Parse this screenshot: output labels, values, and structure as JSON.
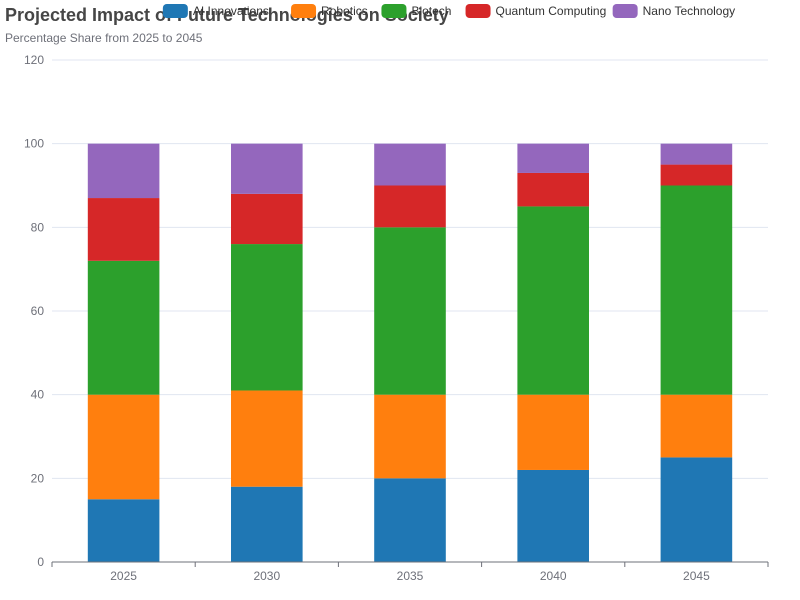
{
  "chart_data": {
    "type": "bar",
    "stacked": true,
    "title": "Projected Impact of Future Technologies on Society",
    "subtitle": "Percentage Share from 2025 to 2045",
    "categories": [
      "2025",
      "2030",
      "2035",
      "2040",
      "2045"
    ],
    "series": [
      {
        "name": "AI Innovations",
        "color": "#1f77b4",
        "values": [
          15,
          18,
          20,
          22,
          25
        ]
      },
      {
        "name": "Robotics",
        "color": "#ff7f0e",
        "values": [
          25,
          23,
          20,
          18,
          15
        ]
      },
      {
        "name": "Biotech",
        "color": "#2ca02c",
        "values": [
          32,
          35,
          40,
          45,
          50
        ]
      },
      {
        "name": "Quantum Computing",
        "color": "#d62728",
        "values": [
          15,
          12,
          10,
          8,
          5
        ]
      },
      {
        "name": "Nano Technology",
        "color": "#9467bd",
        "values": [
          13,
          12,
          10,
          7,
          5
        ]
      }
    ],
    "ylim": [
      0,
      120
    ],
    "yticks": [
      0,
      20,
      40,
      60,
      80,
      100,
      120
    ],
    "grid": true,
    "legend_position": "top"
  }
}
